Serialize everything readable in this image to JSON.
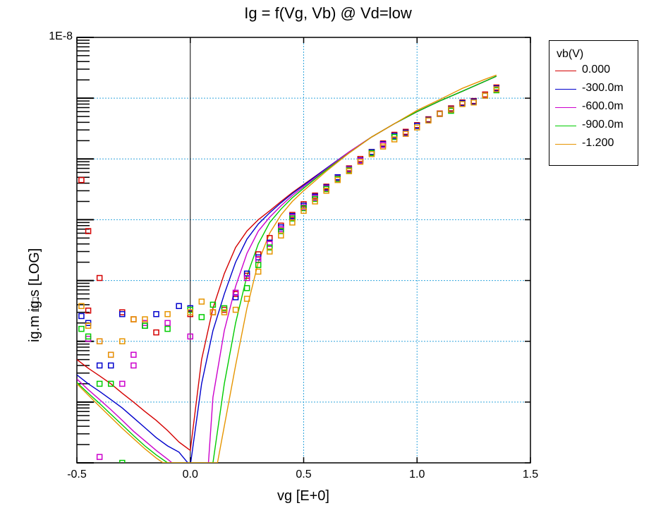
{
  "chart_data": {
    "type": "scatter",
    "title": "Ig = f(Vg, Vb) @ Vd=low",
    "xlabel": "vg  [E+0]",
    "ylabel": "ig.m     ig.s    [LOG]",
    "ylabel_markers": "□ □",
    "xlim": [
      -0.5,
      1.5
    ],
    "ylim": [
      1e-15,
      1e-08
    ],
    "yscale": "log",
    "x_ticks": [
      "-0.5",
      "0.0",
      "0.5",
      "1.0",
      "1.5"
    ],
    "y_ticks": [
      "1E-8",
      "1E-9",
      "1E-10",
      "1E-11",
      "1E-12",
      "1E-13",
      "1E-14",
      "1E-15"
    ],
    "grid": "dotted at x = 0.5, 1.0 and each decade",
    "legend_position": "outside-right-top",
    "legend": {
      "title": "vb(V)",
      "entries": [
        "0.000",
        "-300.0m",
        "-600.0m",
        "-900.0m",
        "-1.200"
      ]
    },
    "series": [
      {
        "name": "0.000",
        "color": "#d40000",
        "line": [
          [
            -0.5,
            5e-14
          ],
          [
            -0.45,
            3.6e-14
          ],
          [
            -0.4,
            2.7e-14
          ],
          [
            -0.35,
            2e-14
          ],
          [
            -0.3,
            1.4e-14
          ],
          [
            -0.25,
            1e-14
          ],
          [
            -0.2,
            7e-15
          ],
          [
            -0.15,
            5e-15
          ],
          [
            -0.1,
            3.4e-15
          ],
          [
            -0.05,
            2.2e-15
          ],
          [
            0.0,
            1.6e-15
          ],
          [
            0.05,
            5e-14
          ],
          [
            0.1,
            3.5e-13
          ],
          [
            0.15,
            1.3e-12
          ],
          [
            0.2,
            3.5e-12
          ],
          [
            0.25,
            6.5e-12
          ],
          [
            0.3,
            1e-11
          ],
          [
            0.35,
            1.4e-11
          ],
          [
            0.4,
            2e-11
          ],
          [
            0.45,
            2.8e-11
          ],
          [
            0.5,
            3.8e-11
          ],
          [
            0.6,
            7e-11
          ],
          [
            0.7,
            1.3e-10
          ],
          [
            0.8,
            2.3e-10
          ],
          [
            0.9,
            3.8e-10
          ],
          [
            1.0,
            6e-10
          ],
          [
            1.1,
            9e-10
          ],
          [
            1.2,
            1.3e-09
          ],
          [
            1.3,
            1.9e-09
          ],
          [
            1.35,
            2.3e-09
          ]
        ],
        "points": [
          [
            -0.48,
            4.5e-11
          ],
          [
            -0.45,
            6.5e-12
          ],
          [
            -0.4,
            1.1e-12
          ],
          [
            -0.45,
            3.2e-13
          ],
          [
            -0.3,
            3e-13
          ],
          [
            -0.25,
            2.3e-13
          ],
          [
            -0.15,
            1.4e-13
          ],
          [
            0.0,
            2.8e-13
          ],
          [
            0.1,
            3e-13
          ],
          [
            0.15,
            3.3e-13
          ],
          [
            0.2,
            6e-13
          ],
          [
            0.25,
            1.2e-12
          ],
          [
            0.3,
            2.7e-12
          ],
          [
            0.35,
            5e-12
          ],
          [
            0.4,
            8e-12
          ],
          [
            0.45,
            1.2e-11
          ],
          [
            0.5,
            1.8e-11
          ],
          [
            0.55,
            2.5e-11
          ],
          [
            0.6,
            3.5e-11
          ],
          [
            0.65,
            5e-11
          ],
          [
            0.7,
            7e-11
          ],
          [
            0.75,
            1e-10
          ],
          [
            0.8,
            1.3e-10
          ],
          [
            0.85,
            1.8e-10
          ],
          [
            0.9,
            2.5e-10
          ],
          [
            0.95,
            2.8e-10
          ],
          [
            1.0,
            3.6e-10
          ],
          [
            1.05,
            4.5e-10
          ],
          [
            1.1,
            5.6e-10
          ],
          [
            1.15,
            6.8e-10
          ],
          [
            1.2,
            8.5e-10
          ],
          [
            1.25,
            9e-10
          ],
          [
            1.3,
            1.15e-09
          ],
          [
            1.35,
            1.5e-09
          ]
        ]
      },
      {
        "name": "-300.0m",
        "color": "#0000cc",
        "line": [
          [
            -0.5,
            2.8e-14
          ],
          [
            -0.45,
            2e-14
          ],
          [
            -0.4,
            1.5e-14
          ],
          [
            -0.35,
            1.1e-14
          ],
          [
            -0.3,
            8e-15
          ],
          [
            -0.25,
            5.5e-15
          ],
          [
            -0.2,
            3.8e-15
          ],
          [
            -0.15,
            2.6e-15
          ],
          [
            -0.1,
            1.9e-15
          ],
          [
            -0.05,
            1.5e-15
          ],
          [
            -0.02,
            1.1e-15
          ],
          [
            0.0,
            9e-16
          ],
          [
            0.05,
            2e-14
          ],
          [
            0.1,
            1.5e-13
          ],
          [
            0.15,
            6e-13
          ],
          [
            0.2,
            2e-12
          ],
          [
            0.25,
            4.8e-12
          ],
          [
            0.3,
            8.5e-12
          ],
          [
            0.35,
            1.3e-11
          ],
          [
            0.4,
            1.9e-11
          ],
          [
            0.45,
            2.7e-11
          ],
          [
            0.5,
            3.7e-11
          ],
          [
            0.6,
            7e-11
          ],
          [
            0.7,
            1.3e-10
          ],
          [
            0.8,
            2.3e-10
          ],
          [
            0.9,
            3.8e-10
          ],
          [
            1.0,
            6e-10
          ],
          [
            1.1,
            9e-10
          ],
          [
            1.2,
            1.3e-09
          ],
          [
            1.3,
            1.9e-09
          ],
          [
            1.35,
            2.3e-09
          ]
        ],
        "points": [
          [
            -0.48,
            2.6e-13
          ],
          [
            -0.45,
            2e-13
          ],
          [
            -0.4,
            4e-14
          ],
          [
            -0.35,
            4e-14
          ],
          [
            -0.3,
            2.8e-13
          ],
          [
            -0.2,
            1.8e-13
          ],
          [
            -0.15,
            2.8e-13
          ],
          [
            -0.05,
            3.8e-13
          ],
          [
            0.0,
            3.5e-13
          ],
          [
            0.2,
            5.3e-13
          ],
          [
            0.25,
            1.3e-12
          ],
          [
            0.3,
            2.4e-12
          ],
          [
            0.35,
            4.2e-12
          ],
          [
            0.4,
            7.5e-12
          ],
          [
            0.45,
            1.15e-11
          ],
          [
            0.5,
            1.7e-11
          ],
          [
            0.55,
            2.4e-11
          ],
          [
            0.6,
            3.4e-11
          ],
          [
            0.65,
            5e-11
          ],
          [
            0.7,
            6.8e-11
          ],
          [
            0.75,
            9.5e-11
          ],
          [
            0.8,
            1.3e-10
          ],
          [
            0.85,
            1.75e-10
          ],
          [
            0.9,
            2.4e-10
          ],
          [
            0.95,
            2.7e-10
          ],
          [
            1.0,
            3.5e-10
          ],
          [
            1.05,
            4.4e-10
          ],
          [
            1.1,
            5.5e-10
          ],
          [
            1.15,
            6.6e-10
          ],
          [
            1.2,
            8.3e-10
          ],
          [
            1.25,
            8.8e-10
          ],
          [
            1.3,
            1.1e-09
          ],
          [
            1.35,
            1.45e-09
          ]
        ]
      },
      {
        "name": "-600.0m",
        "color": "#cc00cc",
        "line": [
          [
            -0.5,
            2.4e-14
          ],
          [
            -0.45,
            1.6e-14
          ],
          [
            -0.4,
            1.1e-14
          ],
          [
            -0.35,
            7.5e-15
          ],
          [
            -0.3,
            5e-15
          ],
          [
            -0.25,
            3.3e-15
          ],
          [
            -0.2,
            2.3e-15
          ],
          [
            -0.15,
            1.6e-15
          ],
          [
            -0.1,
            1.15e-15
          ],
          [
            -0.08,
            1e-15
          ],
          [
            0.08,
            1e-15
          ],
          [
            0.1,
            1.2e-14
          ],
          [
            0.15,
            1.5e-13
          ],
          [
            0.2,
            8e-13
          ],
          [
            0.25,
            2.8e-12
          ],
          [
            0.3,
            6.5e-12
          ],
          [
            0.35,
            1.1e-11
          ],
          [
            0.4,
            1.7e-11
          ],
          [
            0.45,
            2.5e-11
          ],
          [
            0.5,
            3.5e-11
          ],
          [
            0.6,
            6.8e-11
          ],
          [
            0.7,
            1.3e-10
          ],
          [
            0.8,
            2.3e-10
          ],
          [
            0.9,
            3.8e-10
          ],
          [
            1.0,
            6e-10
          ],
          [
            1.1,
            9e-10
          ],
          [
            1.2,
            1.3e-09
          ],
          [
            1.3,
            1.9e-09
          ],
          [
            1.35,
            2.3e-09
          ]
        ],
        "points": [
          [
            -0.45,
            1.1e-13
          ],
          [
            -0.4,
            1e-13
          ],
          [
            -0.35,
            6e-14
          ],
          [
            -0.25,
            6e-14
          ],
          [
            -0.25,
            4e-14
          ],
          [
            -0.3,
            2e-14
          ],
          [
            -0.2,
            2e-13
          ],
          [
            -0.1,
            2e-13
          ],
          [
            0.0,
            1.2e-13
          ],
          [
            0.2,
            6.3e-13
          ],
          [
            0.25,
            1.1e-12
          ],
          [
            0.3,
            2.2e-12
          ],
          [
            0.35,
            4e-12
          ],
          [
            0.4,
            7e-12
          ],
          [
            0.45,
            1.1e-11
          ],
          [
            0.5,
            1.6e-11
          ],
          [
            0.55,
            2.3e-11
          ],
          [
            0.6,
            3.3e-11
          ],
          [
            0.65,
            4.8e-11
          ],
          [
            0.7,
            6.7e-11
          ],
          [
            0.75,
            9.3e-11
          ],
          [
            0.85,
            1.7e-10
          ],
          [
            0.95,
            2.6e-10
          ],
          [
            1.15,
            6.4e-10
          ],
          [
            1.35,
            1.4e-09
          ],
          [
            -0.4,
            1.25e-15
          ]
        ]
      },
      {
        "name": "-900.0m",
        "color": "#00cc00",
        "line": [
          [
            -0.5,
            2.1e-14
          ],
          [
            -0.45,
            1.4e-14
          ],
          [
            -0.4,
            9.5e-15
          ],
          [
            -0.35,
            6.3e-15
          ],
          [
            -0.3,
            4.2e-15
          ],
          [
            -0.25,
            2.8e-15
          ],
          [
            -0.2,
            1.9e-15
          ],
          [
            -0.15,
            1.35e-15
          ],
          [
            -0.1,
            1e-15
          ],
          [
            0.1,
            1e-15
          ],
          [
            0.15,
            2e-14
          ],
          [
            0.2,
            2e-13
          ],
          [
            0.25,
            1.2e-12
          ],
          [
            0.3,
            4e-12
          ],
          [
            0.35,
            9e-12
          ],
          [
            0.4,
            1.5e-11
          ],
          [
            0.45,
            2.3e-11
          ],
          [
            0.5,
            3.3e-11
          ],
          [
            0.6,
            6.6e-11
          ],
          [
            0.7,
            1.25e-10
          ],
          [
            0.8,
            2.3e-10
          ],
          [
            0.9,
            3.8e-10
          ],
          [
            1.0,
            6e-10
          ],
          [
            1.1,
            9e-10
          ],
          [
            1.2,
            1.3e-09
          ],
          [
            1.3,
            1.9e-09
          ],
          [
            1.35,
            2.3e-09
          ]
        ],
        "points": [
          [
            -0.48,
            1.6e-13
          ],
          [
            -0.45,
            1.2e-13
          ],
          [
            -0.4,
            2e-14
          ],
          [
            -0.35,
            2e-14
          ],
          [
            -0.3,
            1e-15
          ],
          [
            -0.2,
            1.8e-13
          ],
          [
            -0.1,
            1.6e-13
          ],
          [
            0.0,
            3.3e-13
          ],
          [
            0.05,
            2.5e-13
          ],
          [
            0.1,
            4e-13
          ],
          [
            0.15,
            3.5e-13
          ],
          [
            0.25,
            7.5e-13
          ],
          [
            0.3,
            1.8e-12
          ],
          [
            0.35,
            3.5e-12
          ],
          [
            0.4,
            6.5e-12
          ],
          [
            0.45,
            1.05e-11
          ],
          [
            0.5,
            1.55e-11
          ],
          [
            0.55,
            2.2e-11
          ],
          [
            0.6,
            3.2e-11
          ],
          [
            0.65,
            4.7e-11
          ],
          [
            0.7,
            6.5e-11
          ],
          [
            0.8,
            1.25e-10
          ],
          [
            0.9,
            2.3e-10
          ],
          [
            1.15,
            6.2e-10
          ],
          [
            1.35,
            1.35e-09
          ]
        ]
      },
      {
        "name": "-1.200",
        "color": "#e69500",
        "line": [
          [
            -0.5,
            2e-14
          ],
          [
            -0.45,
            1.3e-14
          ],
          [
            -0.4,
            8.5e-15
          ],
          [
            -0.35,
            5.6e-15
          ],
          [
            -0.3,
            3.7e-15
          ],
          [
            -0.25,
            2.5e-15
          ],
          [
            -0.2,
            1.7e-15
          ],
          [
            -0.15,
            1.2e-15
          ],
          [
            -0.12,
            1e-15
          ],
          [
            0.12,
            1e-15
          ],
          [
            0.2,
            4e-14
          ],
          [
            0.25,
            3.5e-13
          ],
          [
            0.3,
            2e-12
          ],
          [
            0.35,
            6e-12
          ],
          [
            0.4,
            1.2e-11
          ],
          [
            0.45,
            2e-11
          ],
          [
            0.5,
            3e-11
          ],
          [
            0.6,
            6.3e-11
          ],
          [
            0.7,
            1.25e-10
          ],
          [
            0.8,
            2.3e-10
          ],
          [
            0.9,
            3.8e-10
          ],
          [
            1.0,
            6.3e-10
          ],
          [
            1.1,
            9.5e-10
          ],
          [
            1.2,
            1.45e-09
          ],
          [
            1.3,
            2.05e-09
          ],
          [
            1.35,
            2.4e-09
          ]
        ],
        "points": [
          [
            -0.48,
            3.8e-13
          ],
          [
            -0.45,
            1.8e-13
          ],
          [
            -0.4,
            1e-13
          ],
          [
            -0.35,
            6e-14
          ],
          [
            -0.3,
            1e-13
          ],
          [
            -0.25,
            2.3e-13
          ],
          [
            -0.2,
            2.3e-13
          ],
          [
            -0.1,
            2.8e-13
          ],
          [
            0.0,
            3e-13
          ],
          [
            0.05,
            4.5e-13
          ],
          [
            0.1,
            3e-13
          ],
          [
            0.15,
            3e-13
          ],
          [
            0.2,
            3.3e-13
          ],
          [
            0.25,
            5e-13
          ],
          [
            0.3,
            1.4e-12
          ],
          [
            0.35,
            3e-12
          ],
          [
            0.4,
            5.5e-12
          ],
          [
            0.45,
            9e-12
          ],
          [
            0.5,
            1.4e-11
          ],
          [
            0.55,
            2e-11
          ],
          [
            0.6,
            3e-11
          ],
          [
            0.65,
            4.5e-11
          ],
          [
            0.7,
            6.3e-11
          ],
          [
            0.75,
            9e-11
          ],
          [
            0.8,
            1.2e-10
          ],
          [
            0.85,
            1.6e-10
          ],
          [
            0.9,
            2.1e-10
          ],
          [
            0.95,
            2.6e-10
          ],
          [
            1.0,
            3.3e-10
          ],
          [
            1.05,
            4.3e-10
          ],
          [
            1.1,
            5.5e-10
          ],
          [
            1.15,
            6.5e-10
          ],
          [
            1.2,
            8e-10
          ],
          [
            1.25,
            8.5e-10
          ],
          [
            1.3,
            1.1e-09
          ],
          [
            1.35,
            1.4e-09
          ]
        ]
      }
    ]
  }
}
